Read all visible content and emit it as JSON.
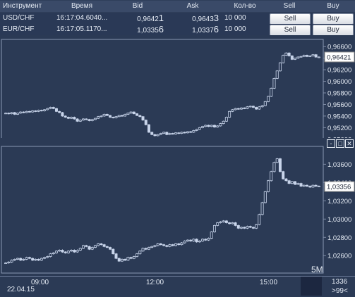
{
  "table": {
    "headers": [
      "Инструмент",
      "Время",
      "Bid",
      "Ask",
      "Кол-во",
      "Sell",
      "Buy"
    ],
    "rows": [
      {
        "instrument": "USD/CHF",
        "time": "16:17:04.6040...",
        "bid_main": "0,9642",
        "bid_last": "1",
        "ask_main": "0,9643",
        "ask_last": "3",
        "qty": "10 000",
        "sell_label": "Sell",
        "buy_label": "Buy"
      },
      {
        "instrument": "EUR/CHF",
        "time": "16:17:05.1170...",
        "bid_main": "1,0335",
        "bid_last": "6",
        "ask_main": "1,0337",
        "ask_last": "6",
        "qty": "10 000",
        "sell_label": "Sell",
        "buy_label": "Buy"
      }
    ]
  },
  "charts": {
    "timeframe": "5M",
    "window_controls": [
      "-",
      "□",
      "✕"
    ],
    "x_ticks": [
      "09:00",
      "12:00",
      "15:00"
    ],
    "date": "22.04.15",
    "corner_top": "1336",
    "corner_bottom": ">99<",
    "colors": {
      "background": "#2b3a55",
      "candles": "#c8d4ea",
      "grid": "#7f8ca6",
      "price_box": "#ffffff"
    }
  },
  "chart_data": [
    {
      "type": "candlestick",
      "symbol": "USD/CHF",
      "ylim": [
        0.949,
        0.967
      ],
      "y_ticks": [
        "0,96600",
        "0,96400",
        "0,96200",
        "0,96000",
        "0,95800",
        "0,95600",
        "0,95400",
        "0,95200",
        "0,95000"
      ],
      "y_tick_values": [
        0.966,
        0.964,
        0.962,
        0.96,
        0.958,
        0.956,
        0.954,
        0.952,
        0.95
      ],
      "current_price": "0,96421",
      "current_value": 0.96421,
      "series": [
        {
          "name": "USD/CHF",
          "values": [
            0.9545,
            0.9544,
            0.9546,
            0.9543,
            0.9545,
            0.9547,
            0.9546,
            0.9548,
            0.9547,
            0.9549,
            0.9548,
            0.955,
            0.9549,
            0.9551,
            0.9553,
            0.9555,
            0.9553,
            0.9548,
            0.9546,
            0.954,
            0.9538,
            0.9536,
            0.9538,
            0.9535,
            0.9531,
            0.9533,
            0.9535,
            0.9534,
            0.9532,
            0.9534,
            0.9536,
            0.9539,
            0.954,
            0.9543,
            0.9541,
            0.9538,
            0.9537,
            0.9539,
            0.9541,
            0.954,
            0.9543,
            0.9545,
            0.9547,
            0.9544,
            0.9541,
            0.9539,
            0.9533,
            0.9525,
            0.9512,
            0.9508,
            0.9506,
            0.9508,
            0.951,
            0.9512,
            0.9508,
            0.951,
            0.9509,
            0.9511,
            0.951,
            0.9512,
            0.9511,
            0.9513,
            0.9512,
            0.9515,
            0.9517,
            0.952,
            0.9522,
            0.9524,
            0.9522,
            0.9524,
            0.9521,
            0.9523,
            0.9527,
            0.9531,
            0.9538,
            0.9548,
            0.9551,
            0.9553,
            0.9552,
            0.9554,
            0.9553,
            0.9556,
            0.9557,
            0.9555,
            0.9552,
            0.9556,
            0.9558,
            0.9565,
            0.9574,
            0.9588,
            0.9605,
            0.9618,
            0.9632,
            0.9645,
            0.9649,
            0.9644,
            0.9638,
            0.964,
            0.9642,
            0.9643,
            0.9645,
            0.9643,
            0.9644,
            0.9646,
            0.9642,
            0.9642
          ]
        }
      ]
    },
    {
      "type": "candlestick",
      "symbol": "EUR/CHF",
      "ylim": [
        1.0244,
        1.0378
      ],
      "y_ticks": [
        "1,03600",
        "1,03400",
        "1,03200",
        "1,03000",
        "1,02800",
        "1,02600"
      ],
      "y_tick_values": [
        1.036,
        1.034,
        1.032,
        1.03,
        1.028,
        1.026
      ],
      "current_price": "1,03356",
      "current_value": 1.03356,
      "series": [
        {
          "name": "EUR/CHF",
          "values": [
            1.0252,
            1.0253,
            1.0255,
            1.0256,
            1.0257,
            1.0255,
            1.0256,
            1.0258,
            1.0257,
            1.0255,
            1.0256,
            1.0255,
            1.0257,
            1.0258,
            1.0259,
            1.0262,
            1.0263,
            1.0265,
            1.0266,
            1.0264,
            1.0263,
            1.0265,
            1.0266,
            1.0264,
            1.0266,
            1.0268,
            1.0271,
            1.027,
            1.0267,
            1.0269,
            1.0271,
            1.0273,
            1.0272,
            1.027,
            1.0269,
            1.0267,
            1.0262,
            1.0257,
            1.0254,
            1.0256,
            1.0255,
            1.0258,
            1.0257,
            1.0259,
            1.0262,
            1.0265,
            1.0268,
            1.0267,
            1.0269,
            1.027,
            1.0271,
            1.0273,
            1.0272,
            1.0271,
            1.027,
            1.0272,
            1.0271,
            1.0273,
            1.0272,
            1.0274,
            1.0276,
            1.0277,
            1.0276,
            1.0278,
            1.0275,
            1.0276,
            1.0278,
            1.0277,
            1.0279,
            1.0286,
            1.0293,
            1.0296,
            1.0297,
            1.0298,
            1.0296,
            1.0295,
            1.0296,
            1.0293,
            1.029,
            1.0291,
            1.029,
            1.0292,
            1.0291,
            1.029,
            1.0294,
            1.0305,
            1.0318,
            1.033,
            1.0342,
            1.0352,
            1.0362,
            1.0366,
            1.0352,
            1.0344,
            1.0342,
            1.0339,
            1.0341,
            1.0338,
            1.0339,
            1.0336,
            1.0337,
            1.0336,
            1.0335,
            1.0337,
            1.0336,
            1.0336
          ]
        }
      ]
    }
  ]
}
